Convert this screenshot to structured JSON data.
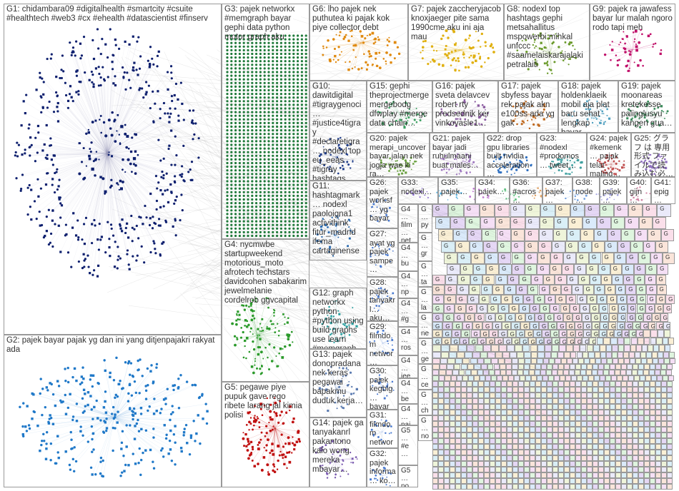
{
  "groups": [
    {
      "id": "G1",
      "label": "G1: chidambara09 #digitalhealth #smartcity #csuite #healthtech #web3 #cx #ehealth #datascientist #finserv"
    },
    {
      "id": "G2",
      "label": "G2: pajek bayar pajak yg dan ini yang ditjenpajakri rakyat ada"
    },
    {
      "id": "G3",
      "label": "G3: pajek networkx #memgraph bayar gephi data python motor graph aku"
    },
    {
      "id": "G4",
      "label": "G4: nycmwbe startupweekend motorious_moto afrotech techstars davidcohen sabakarim jewelmelanie cordelrob ggvcapital"
    },
    {
      "id": "G5",
      "label": "G5: pegawe piye pupuk gave rego ribete larang jal kimia polisi"
    },
    {
      "id": "G6",
      "label": "G6: lho pajek nek puthutea ki pajak kok piye collector debt"
    },
    {
      "id": "G7",
      "label": "G7: pajek zaccheryjacob knoxjaeger pite sama 1990cme aku ini aja mau"
    },
    {
      "id": "G8",
      "label": "G8: nodexl top hashtags gephi metsahallitus mspowerbi mihkal unfccc #saamelaiskarajalaki petralaiti"
    },
    {
      "id": "G9",
      "label": "G9: pajek ra jawafess bayar lur malah ngoro rodo tapi meh"
    },
    {
      "id": "G10",
      "label": "G10: dawitdigital #tigraygenoci… #justice4tigray #declaretigra… nodexl top eu_eeas #tigray hashtags mamaye_m"
    },
    {
      "id": "G11",
      "label": "G11: hashtagmark… nodexl paoloigna1 activithink fitur_madrid ifema cartaginense…"
    },
    {
      "id": "G12",
      "label": "G12: graph networkx python #python using build graphs use learn #memgraph"
    },
    {
      "id": "G13",
      "label": "G13: pajek donopradana nek keras pegawai bapakmu duduk kerja…"
    },
    {
      "id": "G14",
      "label": "G14: pajek ga tanyakanrl pakantono kalo wong mereka mbayar…"
    },
    {
      "id": "G15",
      "label": "G15: gephi theprojectmerge mergebodg dfwplay #merge data chain…"
    },
    {
      "id": "G16",
      "label": "G16: pajek sveta delavcev robert rty predsednik ker vinkovasle1…"
    },
    {
      "id": "G17",
      "label": "G17: pajek sbyfess bayar rek pajak akn e100ss ada yg gak"
    },
    {
      "id": "G18",
      "label": "G18: pajek holdenklaeik mobil aja plat baru sehat lengkap bayar…"
    },
    {
      "id": "G19",
      "label": "G19: pajek moonareas kretekesse palinglusyu kangen gua…"
    },
    {
      "id": "G20",
      "label": "G20: pajek merapi_uncover bayar jalan nek jogja wae ki ra…"
    },
    {
      "id": "G21",
      "label": "G21: pajek bayar jadi ruhulmaani buat males…"
    },
    {
      "id": "G22",
      "label": "G22: drop gpu libraries built nvidia acceleration…"
    },
    {
      "id": "G23",
      "label": "G23: #nodexl #prodomos… tweet…"
    },
    {
      "id": "G24",
      "label": "G24: pajek #kemenk… pajak telat maling…"
    },
    {
      "id": "G25",
      "label": "G25: グラフ は 専用形式 ファイルで読 み込む必…"
    },
    {
      "id": "G26",
      "label": "G26: pajek worksf… yg bayar…"
    },
    {
      "id": "G27",
      "label": "G27: ayat yg pajek sampe…"
    },
    {
      "id": "G28",
      "label": "G28: pajek tanyakrl… aku…"
    },
    {
      "id": "G29",
      "label": "G29: filmdom networ… stopfor…"
    },
    {
      "id": "G30",
      "label": "G30: pajek kegblg… bayar…"
    },
    {
      "id": "G31",
      "label": "G31: filmdom networ… stopfor…"
    },
    {
      "id": "G32",
      "label": "G32: pajek informa… ko…"
    },
    {
      "id": "G33",
      "label": "G33: nodexl…"
    },
    {
      "id": "G34",
      "label": "G34: pajek…"
    },
    {
      "id": "G35",
      "label": "G35: pajek…"
    },
    {
      "id": "G36",
      "label": "G36: #acros…"
    },
    {
      "id": "G37",
      "label": "G37: pajek…"
    },
    {
      "id": "G38",
      "label": "G38: node…"
    },
    {
      "id": "G39",
      "label": "G39: pajek…"
    },
    {
      "id": "G40",
      "label": "G40: gijn…"
    },
    {
      "id": "G41",
      "label": "G41: epig…"
    },
    {
      "id": "G42",
      "label": "G4… film… net…"
    },
    {
      "id": "G43",
      "label": "G4… bu…"
    },
    {
      "id": "G44",
      "label": "G4… np…"
    },
    {
      "id": "G45",
      "label": "G4… #g…"
    },
    {
      "id": "G46",
      "label": "G4… ros… sy…"
    },
    {
      "id": "G47",
      "label": "G4… iee…"
    },
    {
      "id": "G48",
      "label": "G4… be…"
    },
    {
      "id": "G49",
      "label": "G4… paj…"
    },
    {
      "id": "G50",
      "label": "G5… #e…"
    },
    {
      "id": "G51",
      "label": "G5… no…"
    },
    {
      "id": "G52",
      "label": "G… py…"
    },
    {
      "id": "G53",
      "label": "G… gr…"
    },
    {
      "id": "G54",
      "label": "G… ta…"
    },
    {
      "id": "G55",
      "label": "G… la…"
    },
    {
      "id": "G56",
      "label": "G… ne…"
    },
    {
      "id": "G57",
      "label": "G… ge…"
    },
    {
      "id": "G58",
      "label": "G… ce…"
    },
    {
      "id": "G59",
      "label": "G… ch…"
    },
    {
      "id": "G60",
      "label": "G… no…"
    }
  ],
  "small_label": "G",
  "colors": {
    "g1": "#0d1f6e",
    "g2": "#1f78c8",
    "g3": "#1f7a3a",
    "g4": "#2a9a2a",
    "g5": "#c01010",
    "g6": "#e08a10",
    "g7": "#e0b010",
    "g8": "#6a9a2a",
    "g9": "#c0106a",
    "edge": "#b8b8b8",
    "border": "#9a9a9a"
  }
}
